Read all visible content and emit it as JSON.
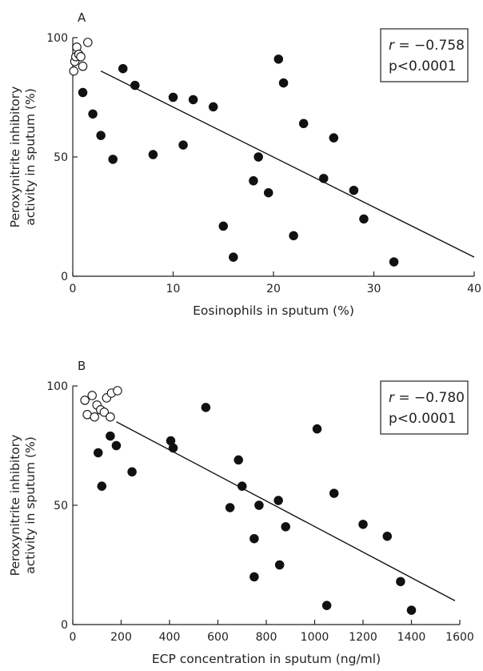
{
  "chart_data": [
    {
      "type": "scatter",
      "panel_label": "A",
      "xlabel": "Eosinophils in sputum (%)",
      "ylabel": [
        "Peroxynitrite inhibitory",
        "activity in sputum (%)"
      ],
      "xlim": [
        0,
        40
      ],
      "ylim": [
        0,
        100
      ],
      "xticks": [
        0,
        10,
        20,
        30,
        40
      ],
      "yticks": [
        0,
        50,
        100
      ],
      "annotation": {
        "r_symbol": "r",
        "r_value": " = −0.758",
        "p": "p<0.0001",
        "placement": "top-right"
      },
      "series": [
        {
          "marker": "open-circle",
          "points": [
            [
              0.1,
              86
            ],
            [
              0.2,
              90
            ],
            [
              0.3,
              92
            ],
            [
              0.4,
              96
            ],
            [
              0.6,
              93
            ],
            [
              0.8,
              92
            ],
            [
              1.0,
              88
            ],
            [
              1.5,
              98
            ]
          ]
        },
        {
          "marker": "filled-circle",
          "points": [
            [
              1,
              77
            ],
            [
              2,
              68
            ],
            [
              2.8,
              59
            ],
            [
              4,
              49
            ],
            [
              5,
              87
            ],
            [
              6.2,
              80
            ],
            [
              8,
              51
            ],
            [
              10,
              75
            ],
            [
              11,
              55
            ],
            [
              12,
              74
            ],
            [
              14,
              71
            ],
            [
              15,
              21
            ],
            [
              16,
              8
            ],
            [
              18,
              40
            ],
            [
              18.5,
              50
            ],
            [
              19.5,
              35
            ],
            [
              20.5,
              91
            ],
            [
              21,
              81
            ],
            [
              22,
              17
            ],
            [
              23,
              64
            ],
            [
              25,
              41
            ],
            [
              26,
              58
            ],
            [
              28,
              36
            ],
            [
              29,
              24
            ],
            [
              32,
              6
            ]
          ]
        }
      ],
      "fit_line": {
        "x": [
          2.8,
          40
        ],
        "y": [
          86,
          8
        ]
      }
    },
    {
      "type": "scatter",
      "panel_label": "B",
      "xlabel": "ECP concentration in sputum (ng/ml)",
      "ylabel": [
        "Peroxynitrite inhibitory",
        "activity in sputum (%)"
      ],
      "xlim": [
        0,
        1600
      ],
      "ylim": [
        0,
        100
      ],
      "xticks": [
        0,
        200,
        400,
        600,
        800,
        1000,
        1200,
        1400,
        1600
      ],
      "yticks": [
        0,
        50,
        100
      ],
      "annotation": {
        "r_symbol": "r",
        "r_value": " = −0.780",
        "p": "p<0.0001",
        "placement": "top-right"
      },
      "series": [
        {
          "marker": "open-circle",
          "points": [
            [
              50,
              94
            ],
            [
              60,
              88
            ],
            [
              80,
              96
            ],
            [
              90,
              87
            ],
            [
              100,
              92
            ],
            [
              115,
              90
            ],
            [
              130,
              89
            ],
            [
              140,
              95
            ],
            [
              155,
              87
            ],
            [
              160,
              97
            ],
            [
              185,
              98
            ]
          ]
        },
        {
          "marker": "filled-circle",
          "points": [
            [
              105,
              72
            ],
            [
              120,
              58
            ],
            [
              155,
              79
            ],
            [
              180,
              75
            ],
            [
              245,
              64
            ],
            [
              405,
              77
            ],
            [
              415,
              74
            ],
            [
              550,
              91
            ],
            [
              650,
              49
            ],
            [
              685,
              69
            ],
            [
              700,
              58
            ],
            [
              750,
              36
            ],
            [
              750,
              20
            ],
            [
              770,
              50
            ],
            [
              850,
              52
            ],
            [
              855,
              25
            ],
            [
              880,
              41
            ],
            [
              1010,
              82
            ],
            [
              1050,
              8
            ],
            [
              1080,
              55
            ],
            [
              1200,
              42
            ],
            [
              1300,
              37
            ],
            [
              1355,
              18
            ],
            [
              1400,
              6
            ]
          ]
        }
      ],
      "fit_line": {
        "x": [
          180,
          1580
        ],
        "y": [
          85,
          10
        ]
      }
    }
  ]
}
